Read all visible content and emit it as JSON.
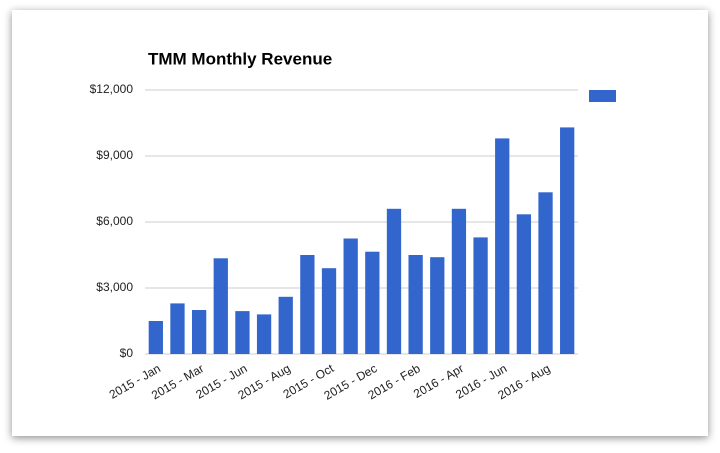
{
  "chart_data": {
    "type": "bar",
    "title": "TMM Monthly Revenue",
    "categories": [
      "2015 - Jan",
      null,
      "2015 - Mar",
      null,
      "2015 - Jun",
      null,
      "2015 - Aug",
      null,
      "2015 - Oct",
      null,
      "2015 - Dec",
      null,
      "2016 - Feb",
      null,
      "2016 - Apr",
      null,
      "2016 - Jun",
      null,
      "2016 - Aug",
      null
    ],
    "values": [
      1500,
      2300,
      2000,
      4350,
      1950,
      1800,
      2600,
      4500,
      3900,
      5250,
      4650,
      6600,
      4500,
      4400,
      6600,
      5300,
      9800,
      6350,
      7350,
      10300
    ],
    "color": "#3366cc",
    "ylim": [
      0,
      12000
    ],
    "yticks": [
      {
        "value": 0,
        "label": "$0"
      },
      {
        "value": 3000,
        "label": "$3,000"
      },
      {
        "value": 6000,
        "label": "$6,000"
      },
      {
        "value": 9000,
        "label": "$9,000"
      },
      {
        "value": 12000,
        "label": "$12,000"
      }
    ],
    "grid": true
  }
}
